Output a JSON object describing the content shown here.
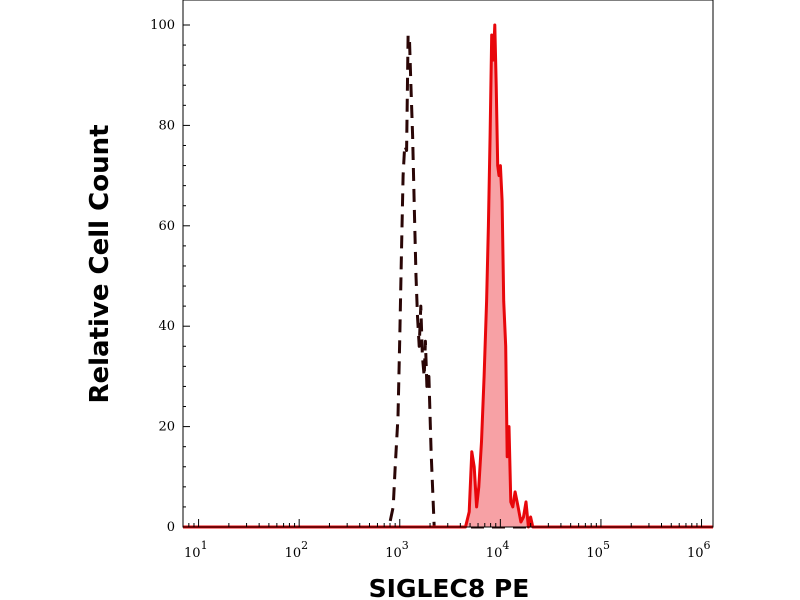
{
  "chart_data": {
    "type": "area",
    "title": "",
    "xlabel": "SIGLEC8 PE",
    "ylabel": "Relative Cell Count",
    "x_scale": "log",
    "xlim": [
      7,
      1300000
    ],
    "ylim": [
      0,
      100
    ],
    "grid": false,
    "legend": "none",
    "y_ticks": [
      {
        "value": 0,
        "label": "0"
      },
      {
        "value": 20,
        "label": "20"
      },
      {
        "value": 40,
        "label": "40"
      },
      {
        "value": 60,
        "label": "60"
      },
      {
        "value": 80,
        "label": "80"
      },
      {
        "value": 100,
        "label": "100"
      }
    ],
    "x_ticks": [
      {
        "value": 10,
        "base": "10",
        "exp": "1"
      },
      {
        "value": 100,
        "base": "10",
        "exp": "2"
      },
      {
        "value": 1000,
        "base": "10",
        "exp": "3"
      },
      {
        "value": 10000,
        "base": "10",
        "exp": "4"
      },
      {
        "value": 100000,
        "base": "10",
        "exp": "5"
      },
      {
        "value": 1000000,
        "base": "10",
        "exp": "6"
      }
    ],
    "series": [
      {
        "style": "dashed",
        "color": "#2a0606",
        "fill": "none",
        "x": [
          7,
          100,
          700,
          800,
          860,
          900,
          960,
          1000,
          1040,
          1080,
          1120,
          1170,
          1210,
          1250,
          1290,
          1340,
          1400,
          1450,
          1500,
          1560,
          1620,
          1680,
          1750,
          1800,
          1860,
          1950,
          2050,
          2200,
          2400,
          1300000
        ],
        "y": [
          0,
          0,
          0,
          1,
          4,
          12,
          22,
          38,
          55,
          70,
          76,
          75,
          98,
          97,
          88,
          78,
          62,
          50,
          42,
          36,
          44,
          34,
          30,
          37,
          28,
          30,
          15,
          0,
          0,
          0
        ]
      },
      {
        "style": "solid",
        "color": "#e8070b",
        "fill": "#f7a1a5",
        "x": [
          7,
          4000,
          4500,
          4900,
          5200,
          5500,
          5800,
          6100,
          6500,
          6900,
          7300,
          7600,
          7900,
          8200,
          8500,
          8800,
          9100,
          9400,
          9700,
          10000,
          10400,
          10800,
          11300,
          11700,
          12200,
          12700,
          13300,
          14000,
          15000,
          16000,
          17000,
          18000,
          19000,
          20000,
          21000,
          22000,
          24000,
          1300000
        ],
        "y": [
          0,
          0,
          0,
          3,
          15,
          12,
          4,
          8,
          17,
          30,
          45,
          60,
          78,
          98,
          93,
          100,
          88,
          72,
          70,
          72,
          65,
          45,
          36,
          14,
          20,
          5,
          4,
          7,
          4,
          1,
          2,
          5,
          0,
          2,
          0,
          0,
          0,
          0
        ]
      }
    ]
  }
}
